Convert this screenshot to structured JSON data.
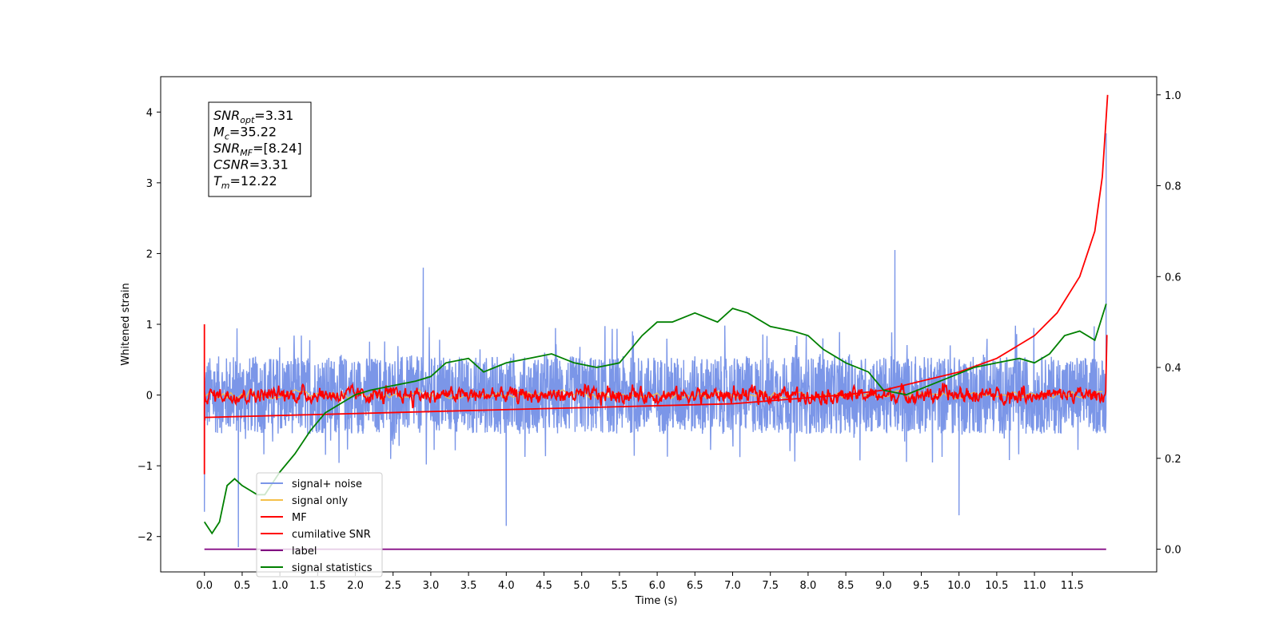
{
  "chart_data": {
    "type": "line",
    "xlabel": "Time (s)",
    "ylabel": "Whitened strain",
    "xlim": [
      -0.58,
      12.62
    ],
    "ylim": [
      -2.5,
      4.5
    ],
    "y2lim": [
      -0.05,
      1.04
    ],
    "x_ticks": [
      "0.0",
      "0.5",
      "1.0",
      "1.5",
      "2.0",
      "2.5",
      "3.0",
      "3.5",
      "4.0",
      "4.5",
      "5.0",
      "5.5",
      "6.0",
      "6.5",
      "7.0",
      "7.5",
      "8.0",
      "8.5",
      "9.0",
      "9.5",
      "10.0",
      "10.5",
      "11.0",
      "11.5"
    ],
    "y_ticks": [
      "−2",
      "−1",
      "0",
      "1",
      "2",
      "3",
      "4"
    ],
    "y2_ticks": [
      "0.0",
      "0.2",
      "0.4",
      "0.6",
      "0.8",
      "1.0"
    ],
    "legend_position": "lower-left",
    "stats_box": [
      {
        "sym": "SNR",
        "sub": "opt",
        "val": "=3.31"
      },
      {
        "sym": "M",
        "sub": "c",
        "val": "=35.22"
      },
      {
        "sym": "SNR",
        "sub": "MF",
        "val": "=[8.24]"
      },
      {
        "sym": "CSNR",
        "sub": "",
        "val": "=3.31"
      },
      {
        "sym": "T",
        "sub": "m",
        "val": "=12.22"
      }
    ],
    "series": [
      {
        "name": "signal+ noise",
        "color": "#7b96e8",
        "axis": "left",
        "amplitude": 0.55,
        "spikes": [
          [
            0.0,
            -1.65
          ],
          [
            0.45,
            -2.15
          ],
          [
            2.9,
            1.8
          ],
          [
            4.0,
            -1.85
          ],
          [
            9.15,
            2.05
          ],
          [
            10.0,
            -1.7
          ],
          [
            11.95,
            3.7
          ]
        ]
      },
      {
        "name": "signal only",
        "color": "#f5c04a",
        "axis": "left",
        "amplitude": 0.05
      },
      {
        "name": "MF",
        "color": "#ff0000",
        "axis": "left",
        "amplitude": 0.13
      },
      {
        "name": "cumilative SNR",
        "color": "#ff0000",
        "axis": "right",
        "x": [
          0.0,
          7.0,
          8.5,
          9.0,
          9.5,
          10.0,
          10.5,
          11.0,
          11.3,
          11.6,
          11.8,
          11.9,
          11.95,
          11.97
        ],
        "y": [
          0.29,
          0.32,
          0.34,
          0.35,
          0.37,
          0.39,
          0.42,
          0.47,
          0.52,
          0.6,
          0.7,
          0.82,
          0.95,
          1.0
        ]
      },
      {
        "name": "label",
        "color": "#800080",
        "axis": "right",
        "x": [
          0.0,
          11.95
        ],
        "y": [
          0.0,
          0.0
        ]
      },
      {
        "name": "signal statistics",
        "color": "#008000",
        "axis": "right",
        "x": [
          0.0,
          0.1,
          0.2,
          0.3,
          0.4,
          0.5,
          0.6,
          0.7,
          0.8,
          1.0,
          1.2,
          1.4,
          1.6,
          1.8,
          2.0,
          2.2,
          2.5,
          2.8,
          3.0,
          3.2,
          3.5,
          3.7,
          4.0,
          4.3,
          4.6,
          4.9,
          5.2,
          5.5,
          5.8,
          6.0,
          6.2,
          6.5,
          6.8,
          7.0,
          7.2,
          7.5,
          7.8,
          8.0,
          8.2,
          8.5,
          8.8,
          9.0,
          9.3,
          9.6,
          9.9,
          10.2,
          10.5,
          10.8,
          11.0,
          11.2,
          11.4,
          11.6,
          11.8,
          11.95
        ],
        "y": [
          0.06,
          0.035,
          0.06,
          0.14,
          0.155,
          0.14,
          0.13,
          0.12,
          0.12,
          0.17,
          0.21,
          0.26,
          0.3,
          0.32,
          0.34,
          0.35,
          0.36,
          0.37,
          0.38,
          0.41,
          0.42,
          0.39,
          0.41,
          0.42,
          0.43,
          0.41,
          0.4,
          0.41,
          0.47,
          0.5,
          0.5,
          0.52,
          0.5,
          0.53,
          0.52,
          0.49,
          0.48,
          0.47,
          0.44,
          0.41,
          0.39,
          0.35,
          0.34,
          0.36,
          0.38,
          0.4,
          0.41,
          0.42,
          0.41,
          0.43,
          0.47,
          0.48,
          0.46,
          0.54
        ]
      }
    ]
  }
}
